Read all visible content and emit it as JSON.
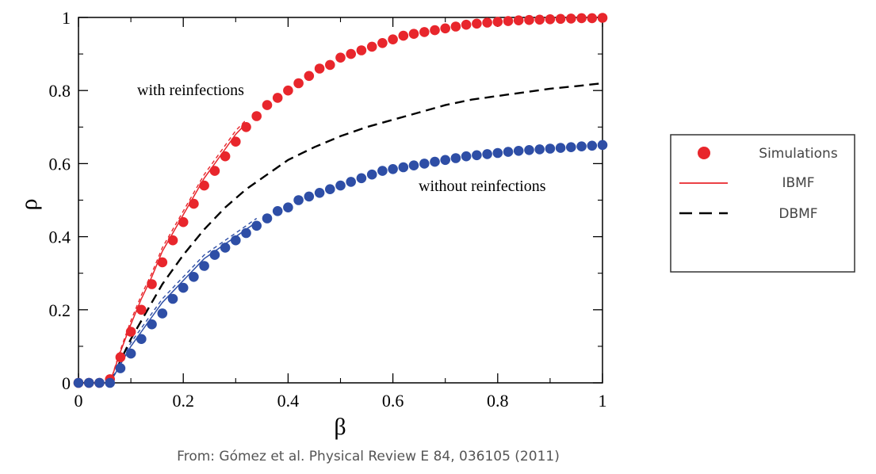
{
  "chart_data": {
    "type": "scatter",
    "xlabel": "β",
    "ylabel": "ρ",
    "xlim": [
      0,
      1
    ],
    "ylim": [
      0,
      1
    ],
    "x_ticks": [
      "0",
      "0.2",
      "0.4",
      "0.6",
      "0.8",
      "1"
    ],
    "y_ticks": [
      "0",
      "0.2",
      "0.4",
      "0.6",
      "0.8",
      "1"
    ],
    "annotations": {
      "with": "with reinfections",
      "without": "without reinfections"
    },
    "legend": {
      "placement": "right",
      "entries": [
        "Simulations",
        "IBMF",
        "DBMF"
      ]
    },
    "simulations": [
      {
        "color": "#e8262c",
        "x": [
          0,
          0.02,
          0.04,
          0.06,
          0.08,
          0.1,
          0.12,
          0.14,
          0.16,
          0.18,
          0.2,
          0.22,
          0.24,
          0.26,
          0.28,
          0.3,
          0.32,
          0.34,
          0.36,
          0.38,
          0.4,
          0.42,
          0.44,
          0.46,
          0.48,
          0.5,
          0.52,
          0.54,
          0.56,
          0.58,
          0.6,
          0.62,
          0.64,
          0.66,
          0.68,
          0.7,
          0.72,
          0.74,
          0.76,
          0.78,
          0.8,
          0.82,
          0.84,
          0.86,
          0.88,
          0.9,
          0.92,
          0.94,
          0.96,
          0.98,
          1
        ],
        "y": [
          0,
          0,
          0,
          0.01,
          0.07,
          0.14,
          0.2,
          0.27,
          0.33,
          0.39,
          0.44,
          0.49,
          0.54,
          0.58,
          0.62,
          0.66,
          0.7,
          0.73,
          0.76,
          0.78,
          0.8,
          0.82,
          0.84,
          0.86,
          0.87,
          0.89,
          0.9,
          0.91,
          0.92,
          0.93,
          0.94,
          0.95,
          0.955,
          0.96,
          0.965,
          0.97,
          0.975,
          0.98,
          0.983,
          0.986,
          0.988,
          0.99,
          0.992,
          0.993,
          0.994,
          0.995,
          0.996,
          0.997,
          0.998,
          0.998,
          0.999
        ]
      },
      {
        "color": "#2e4ea6",
        "x": [
          0,
          0.02,
          0.04,
          0.06,
          0.08,
          0.1,
          0.12,
          0.14,
          0.16,
          0.18,
          0.2,
          0.22,
          0.24,
          0.26,
          0.28,
          0.3,
          0.32,
          0.34,
          0.36,
          0.38,
          0.4,
          0.42,
          0.44,
          0.46,
          0.48,
          0.5,
          0.52,
          0.54,
          0.56,
          0.58,
          0.6,
          0.62,
          0.64,
          0.66,
          0.68,
          0.7,
          0.72,
          0.74,
          0.76,
          0.78,
          0.8,
          0.82,
          0.84,
          0.86,
          0.88,
          0.9,
          0.92,
          0.94,
          0.96,
          0.98,
          1
        ],
        "y": [
          0,
          0,
          0,
          0,
          0.04,
          0.08,
          0.12,
          0.16,
          0.19,
          0.23,
          0.26,
          0.29,
          0.32,
          0.35,
          0.37,
          0.39,
          0.41,
          0.43,
          0.45,
          0.47,
          0.48,
          0.5,
          0.51,
          0.52,
          0.53,
          0.54,
          0.55,
          0.56,
          0.57,
          0.58,
          0.585,
          0.59,
          0.595,
          0.6,
          0.605,
          0.61,
          0.615,
          0.62,
          0.623,
          0.626,
          0.629,
          0.632,
          0.635,
          0.637,
          0.639,
          0.641,
          0.643,
          0.645,
          0.647,
          0.649,
          0.651
        ]
      }
    ],
    "ibmf": [
      {
        "color": "#e8262c",
        "x": [
          0.06,
          0.08,
          0.1,
          0.12,
          0.14,
          0.16,
          0.18,
          0.2,
          0.22,
          0.24,
          0.26,
          0.28,
          0.3,
          0.32
        ],
        "y": [
          0,
          0.085,
          0.16,
          0.23,
          0.29,
          0.36,
          0.41,
          0.46,
          0.51,
          0.56,
          0.6,
          0.64,
          0.68,
          0.71
        ]
      },
      {
        "color": "#2e4ea6",
        "x": [
          0.06,
          0.08,
          0.1,
          0.12,
          0.14,
          0.16,
          0.18,
          0.2,
          0.22,
          0.24,
          0.26,
          0.28,
          0.3,
          0.32,
          0.34
        ],
        "y": [
          0,
          0.05,
          0.1,
          0.14,
          0.18,
          0.22,
          0.25,
          0.28,
          0.31,
          0.34,
          0.36,
          0.38,
          0.4,
          0.42,
          0.44
        ]
      }
    ],
    "dbmf": [
      {
        "color": "#000000",
        "x": [
          0.06,
          0.08,
          0.1,
          0.12,
          0.14,
          0.16,
          0.18,
          0.2,
          0.24,
          0.28,
          0.32,
          0.36,
          0.4,
          0.45,
          0.5,
          0.55,
          0.6,
          0.65,
          0.7,
          0.75,
          0.8,
          0.85,
          0.9,
          0.95,
          1
        ],
        "y": [
          0,
          0.06,
          0.12,
          0.17,
          0.22,
          0.27,
          0.31,
          0.35,
          0.42,
          0.48,
          0.53,
          0.57,
          0.61,
          0.645,
          0.675,
          0.7,
          0.72,
          0.74,
          0.76,
          0.775,
          0.785,
          0.795,
          0.805,
          0.812,
          0.82
        ]
      },
      {
        "color": "#e8262c",
        "x": [
          0.06,
          0.08,
          0.1,
          0.12,
          0.14,
          0.16,
          0.18,
          0.2,
          0.22,
          0.24,
          0.26,
          0.28,
          0.3,
          0.32
        ],
        "y": [
          0,
          0.09,
          0.17,
          0.24,
          0.3,
          0.37,
          0.42,
          0.47,
          0.52,
          0.57,
          0.61,
          0.65,
          0.69,
          0.72
        ]
      },
      {
        "color": "#2e4ea6",
        "x": [
          0.06,
          0.08,
          0.1,
          0.12,
          0.14,
          0.16,
          0.18,
          0.2,
          0.22,
          0.24,
          0.26,
          0.28,
          0.3,
          0.32,
          0.34
        ],
        "y": [
          0,
          0.055,
          0.11,
          0.15,
          0.19,
          0.23,
          0.26,
          0.29,
          0.32,
          0.35,
          0.37,
          0.39,
          0.41,
          0.43,
          0.45
        ]
      }
    ]
  },
  "caption": "From: Gómez et al. Physical Review E 84, 036105 (2011)",
  "colors": {
    "red": "#e8262c",
    "blue": "#2e4ea6",
    "black": "#000000"
  }
}
